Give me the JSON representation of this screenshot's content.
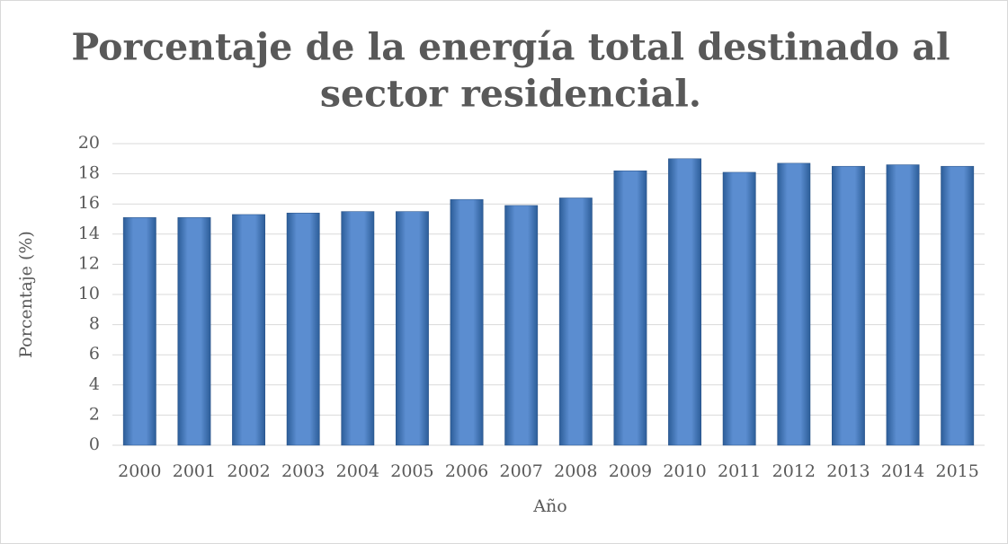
{
  "chart_data": {
    "type": "bar",
    "title": [
      "Porcentaje de la energía total destinado al",
      "sector residencial."
    ],
    "x_label": "Año",
    "y_label": "Porcentaje (%)",
    "categories": [
      "2000",
      "2001",
      "2002",
      "2003",
      "2004",
      "2005",
      "2006",
      "2007",
      "2008",
      "2009",
      "2010",
      "2011",
      "2012",
      "2013",
      "2014",
      "2015"
    ],
    "values": [
      15.1,
      15.1,
      15.3,
      15.4,
      15.5,
      15.5,
      16.3,
      15.9,
      16.4,
      18.2,
      19.0,
      18.1,
      18.7,
      18.5,
      18.6,
      18.5
    ],
    "color": "#4f81bd",
    "ylim": [
      0,
      20
    ],
    "yticks": [
      0,
      2,
      4,
      6,
      8,
      10,
      12,
      14,
      16,
      18,
      20
    ],
    "grid": true
  }
}
